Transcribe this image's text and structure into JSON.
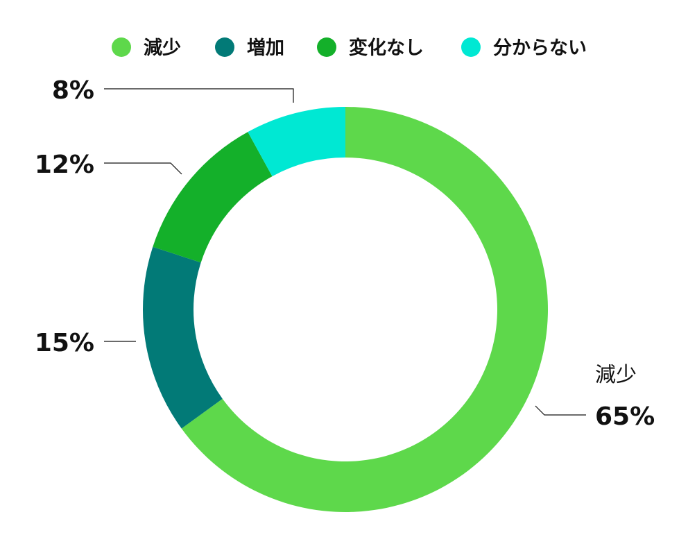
{
  "chart_data": {
    "type": "pie",
    "donut": true,
    "legend_position": "top",
    "slices": [
      {
        "name": "減少",
        "value": 65,
        "label": "65%",
        "color": "#5ed84b"
      },
      {
        "name": "増加",
        "value": 15,
        "label": "15%",
        "color": "#027a77"
      },
      {
        "name": "変化なし",
        "value": 12,
        "label": "12%",
        "color": "#14b02a"
      },
      {
        "name": "分からない",
        "value": 8,
        "label": "8%",
        "color": "#00e8d3"
      }
    ]
  }
}
